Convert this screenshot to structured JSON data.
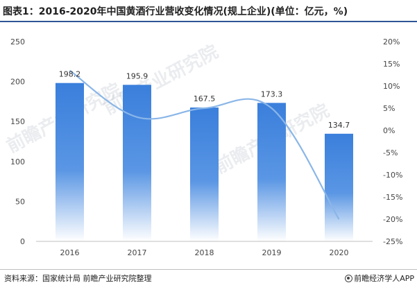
{
  "title": "图表1：2016-2020年中国黄酒行业营收变化情况(规上企业)(单位：亿元，%)",
  "source": "资料来源：国家统计局 前瞻产业研究院整理",
  "brand": "前瞻经济学人APP",
  "watermark": "前瞻产业研究院",
  "colors": {
    "bar_top": "#3a7fdc",
    "bar_bottom": "#ffffff",
    "line": "#8ab6e8",
    "title_rule": "#2f5597"
  },
  "chart_data": {
    "type": "bar",
    "categories": [
      "2016",
      "2017",
      "2018",
      "2019",
      "2020"
    ],
    "series": [
      {
        "type": "bar",
        "axis": "left",
        "values": [
          198.2,
          195.9,
          167.5,
          173.3,
          134.7
        ]
      },
      {
        "type": "line",
        "axis": "right",
        "values": [
          13.5,
          3,
          5,
          5,
          -20
        ]
      }
    ],
    "data_labels": [
      "198.2",
      "195.9",
      "167.5",
      "173.3",
      "134.7"
    ],
    "y_left": {
      "min": 0,
      "max": 250,
      "ticks": [
        "0",
        "50",
        "100",
        "150",
        "200",
        "250"
      ]
    },
    "y_right": {
      "min": -25,
      "max": 20,
      "ticks": [
        "-25%",
        "-20%",
        "-15%",
        "-10%",
        "-5%",
        "0%",
        "5%",
        "10%",
        "15%",
        "20%"
      ]
    },
    "grid": false,
    "legend": "none"
  }
}
